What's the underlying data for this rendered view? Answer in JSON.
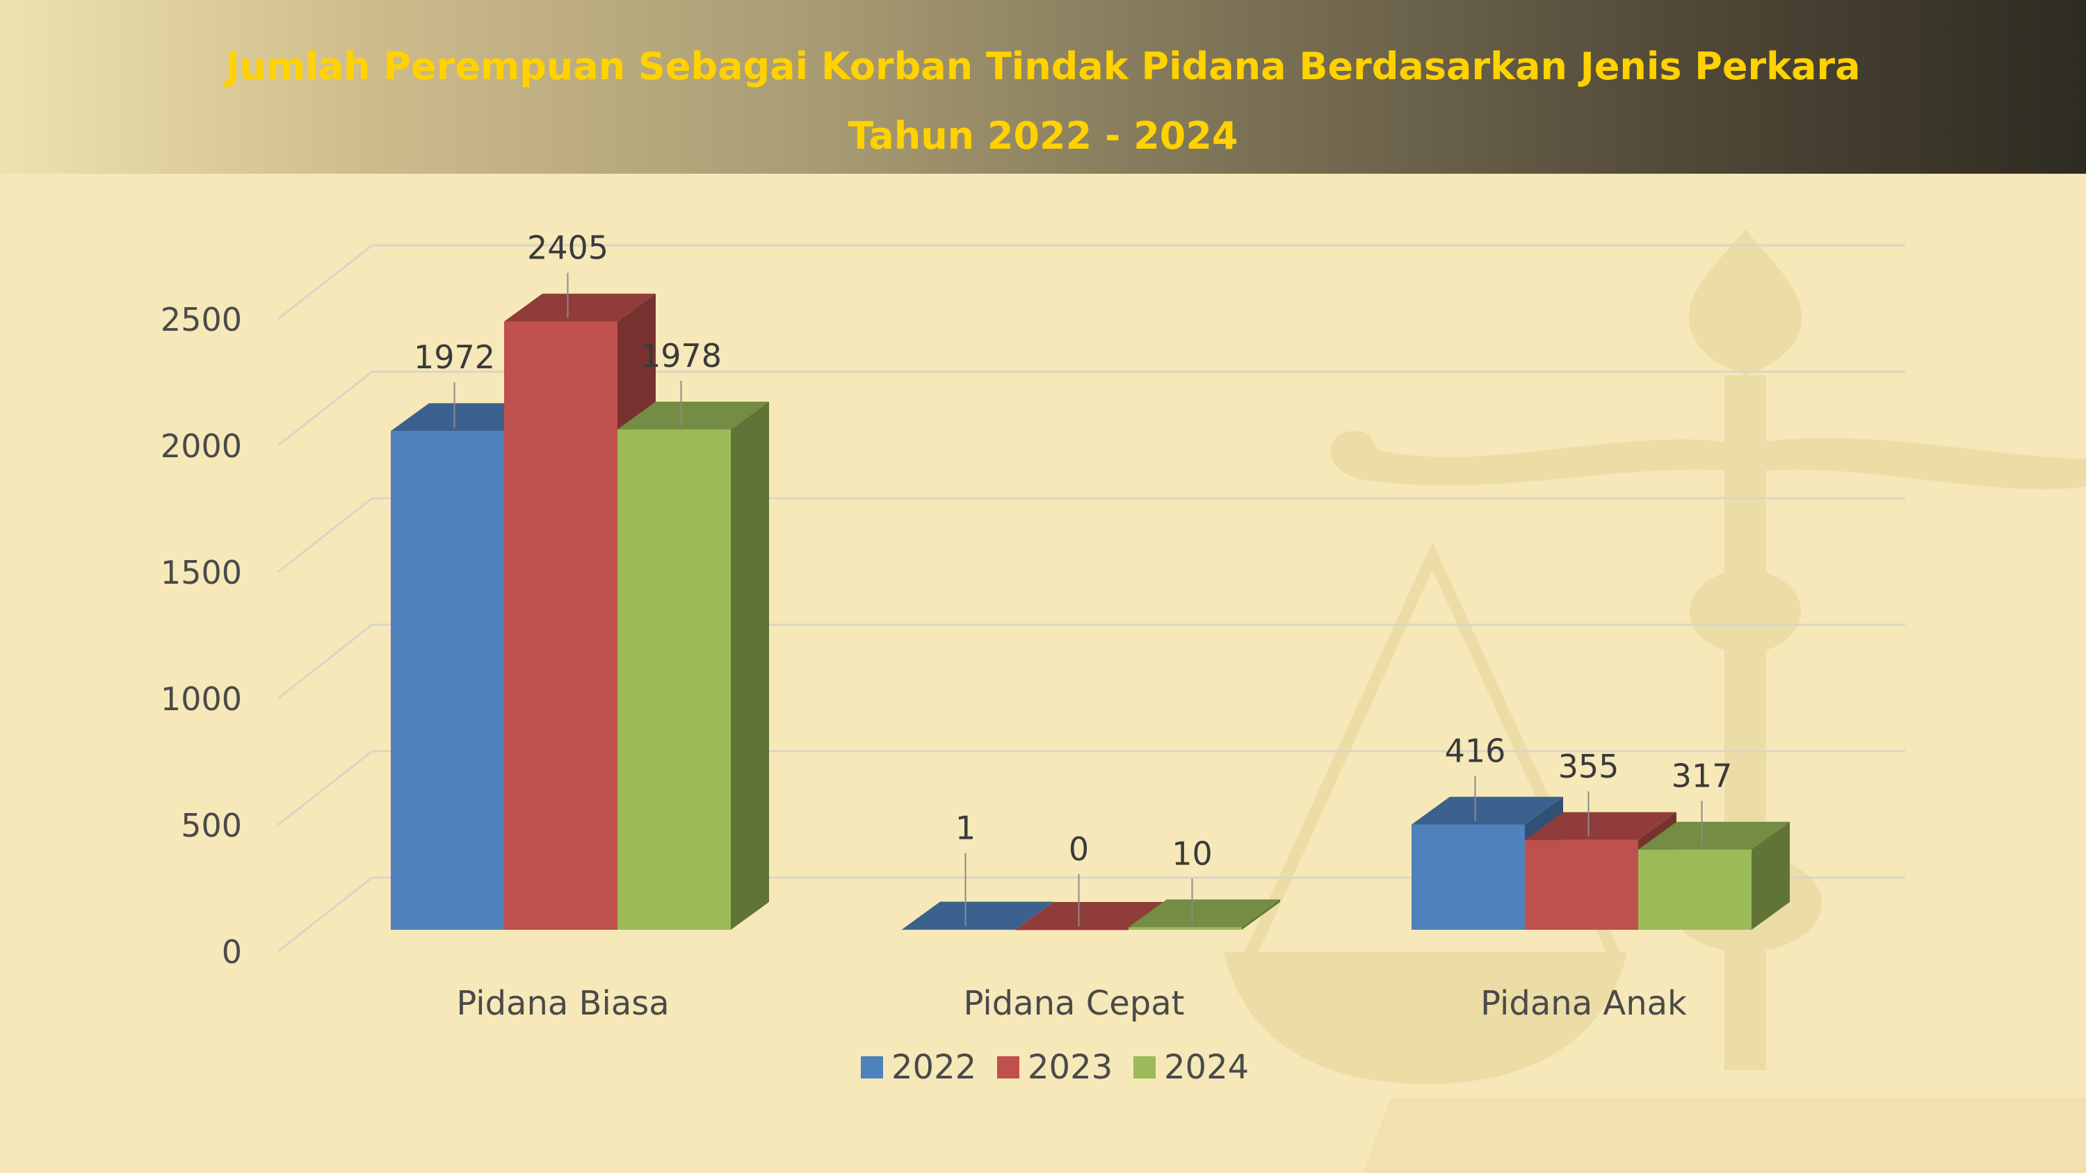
{
  "title": [
    "Jumlah Perempuan Sebagai Korban Tindak Pidana Berdasarkan Jenis Perkara",
    "Tahun 2022 - 2024"
  ],
  "chart_data": {
    "type": "bar",
    "categories": [
      "Pidana Biasa",
      "Pidana Cepat",
      "Pidana Anak"
    ],
    "series": [
      {
        "name": "2022",
        "color": "#4f81bd",
        "values": [
          1972,
          1,
          416
        ]
      },
      {
        "name": "2023",
        "color": "#c0504d",
        "values": [
          2405,
          0,
          355
        ]
      },
      {
        "name": "2024",
        "color": "#9bbb59",
        "values": [
          1978,
          10,
          317
        ]
      }
    ],
    "ylim": [
      0,
      2500
    ],
    "yticks": [
      0,
      500,
      1000,
      1500,
      2000,
      2500
    ],
    "grid": true,
    "legend": "bottom",
    "three_d": true
  }
}
